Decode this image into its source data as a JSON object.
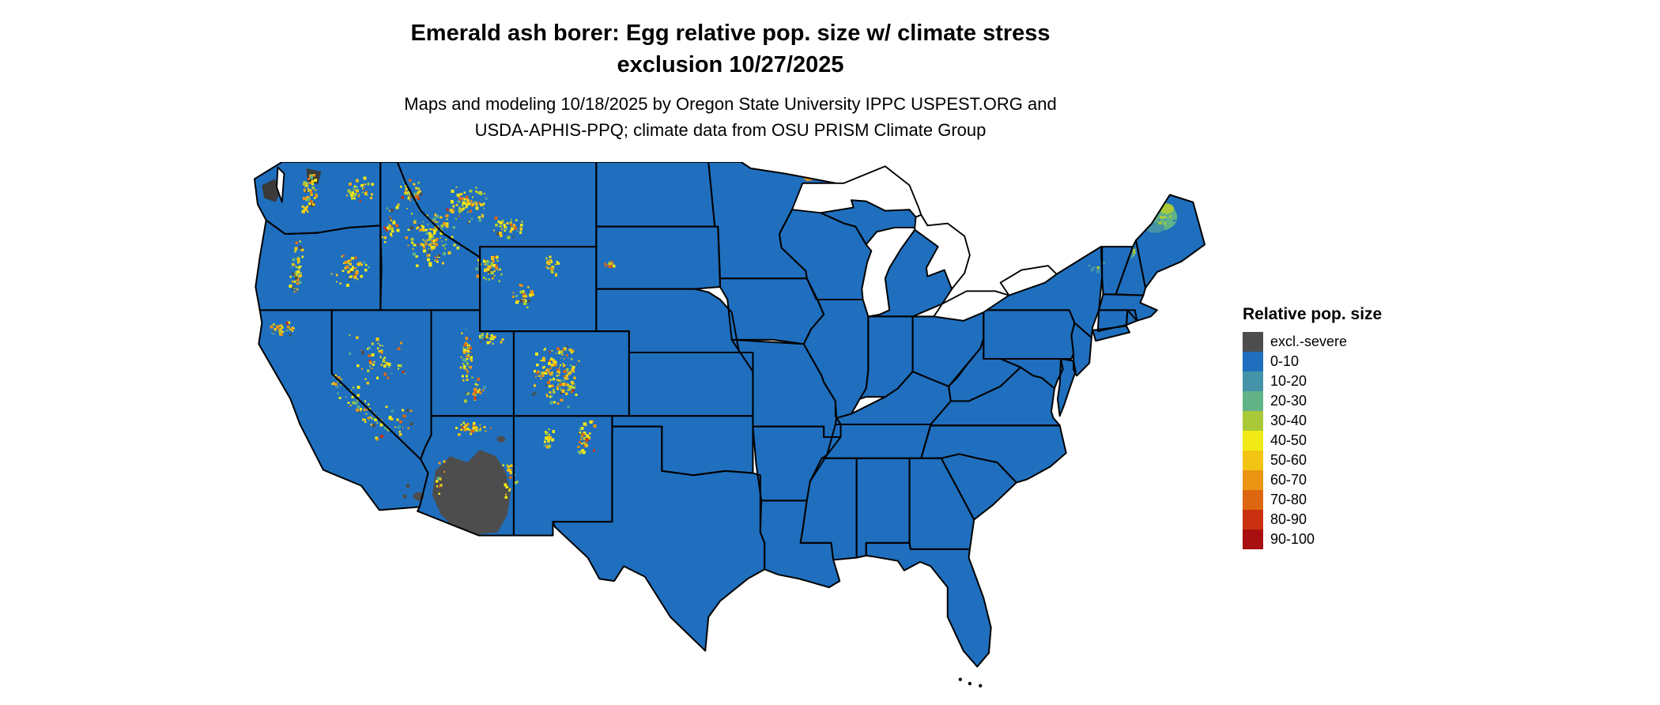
{
  "title": {
    "line1": "Emerald ash borer: Egg relative pop. size w/ climate stress",
    "line2": "exclusion 10/27/2025"
  },
  "subtitle": {
    "line1": "Maps and modeling 10/18/2025 by Oregon State University IPPC USPEST.ORG and",
    "line2": "USDA-APHIS-PPQ; climate data from OSU PRISM Climate Group"
  },
  "legend": {
    "title": "Relative pop. size",
    "items": [
      {
        "label": "excl.-severe",
        "color": "#4d4d4d"
      },
      {
        "label": "0-10",
        "color": "#1f6fbe"
      },
      {
        "label": "10-20",
        "color": "#4493a9"
      },
      {
        "label": "20-30",
        "color": "#62b288"
      },
      {
        "label": "30-40",
        "color": "#a9c938"
      },
      {
        "label": "40-50",
        "color": "#f2ea16"
      },
      {
        "label": "50-60",
        "color": "#f2c414"
      },
      {
        "label": "60-70",
        "color": "#ec9413"
      },
      {
        "label": "70-80",
        "color": "#dd6610"
      },
      {
        "label": "80-90",
        "color": "#c93010"
      },
      {
        "label": "90-100",
        "color": "#a80f11"
      }
    ]
  },
  "map": {
    "name": "Continental United States - modeled raster map",
    "base_color": "#1f6fbe",
    "water_color": "#ffffff",
    "border_color": "#000000"
  }
}
